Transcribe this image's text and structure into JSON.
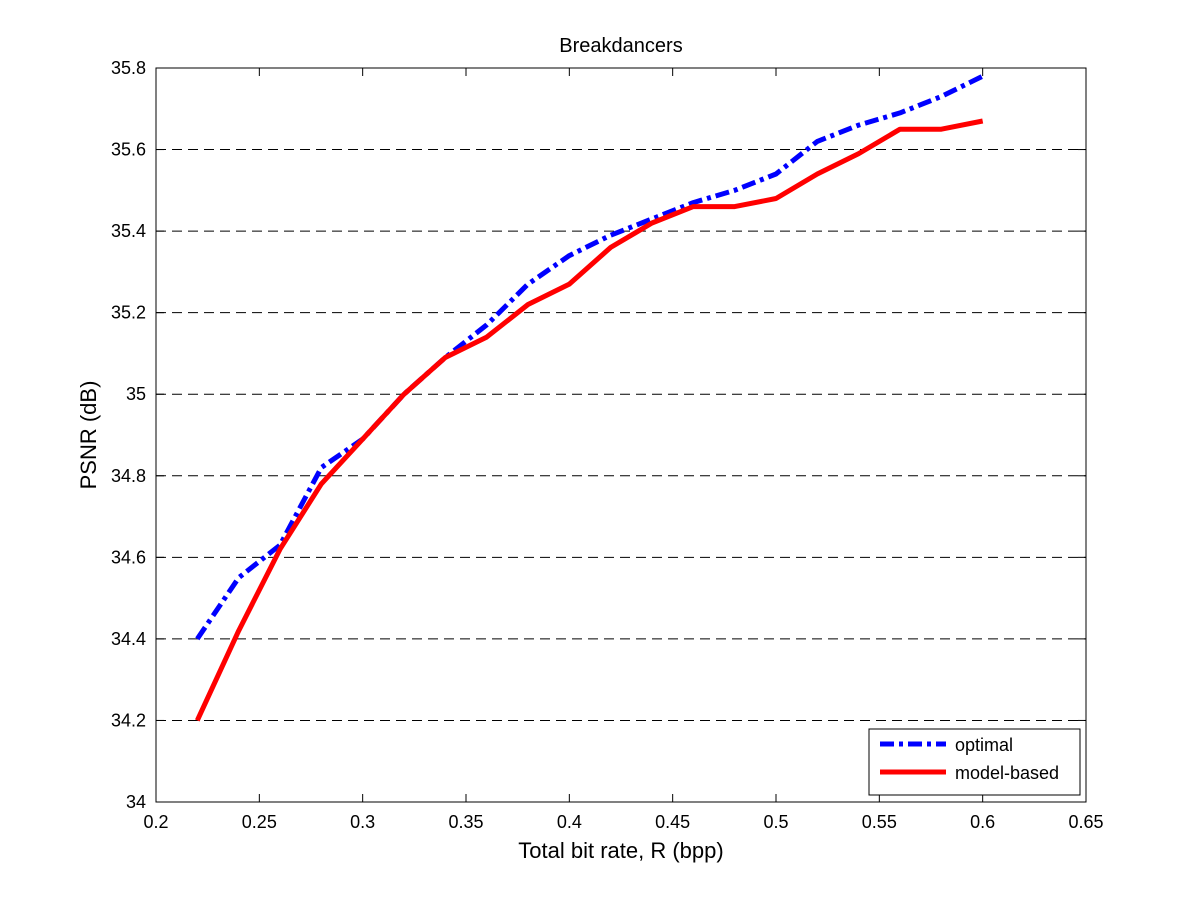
{
  "chart_data": {
    "type": "line",
    "title": "Breakdancers",
    "xlabel": "Total bit rate, R (bpp)",
    "ylabel": "PSNR (dB)",
    "xlim": [
      0.2,
      0.65
    ],
    "ylim": [
      34,
      35.8
    ],
    "xticks": [
      0.2,
      0.25,
      0.3,
      0.35,
      0.4,
      0.45,
      0.5,
      0.55,
      0.6,
      0.65
    ],
    "xtick_labels": [
      "0.2",
      "0.25",
      "0.3",
      "0.35",
      "0.4",
      "0.45",
      "0.5",
      "0.55",
      "0.6",
      "0.65"
    ],
    "yticks": [
      34,
      34.2,
      34.4,
      34.6,
      34.8,
      35,
      35.2,
      35.4,
      35.6,
      35.8
    ],
    "ytick_labels": [
      "34",
      "34.2",
      "34.4",
      "34.6",
      "34.8",
      "35",
      "35.2",
      "35.4",
      "35.6",
      "35.8"
    ],
    "grid": "horizontal dashed",
    "legend_position": "bottom-right",
    "series": [
      {
        "name": "optimal",
        "color": "#0000ff",
        "style": "dash-dot",
        "x": [
          0.22,
          0.24,
          0.26,
          0.28,
          0.3,
          0.32,
          0.34,
          0.36,
          0.38,
          0.4,
          0.42,
          0.44,
          0.46,
          0.48,
          0.5,
          0.52,
          0.54,
          0.56,
          0.58,
          0.6
        ],
        "y": [
          34.4,
          34.55,
          34.63,
          34.82,
          34.89,
          35.0,
          35.09,
          35.17,
          35.27,
          35.34,
          35.39,
          35.43,
          35.47,
          35.5,
          35.54,
          35.62,
          35.66,
          35.69,
          35.73,
          35.78
        ]
      },
      {
        "name": "model-based",
        "color": "#ff0000",
        "style": "solid",
        "x": [
          0.22,
          0.24,
          0.26,
          0.28,
          0.3,
          0.32,
          0.34,
          0.36,
          0.38,
          0.4,
          0.42,
          0.44,
          0.46,
          0.48,
          0.5,
          0.52,
          0.54,
          0.56,
          0.58,
          0.6
        ],
        "y": [
          34.2,
          34.42,
          34.62,
          34.78,
          34.89,
          35.0,
          35.09,
          35.14,
          35.22,
          35.27,
          35.36,
          35.42,
          35.46,
          35.46,
          35.48,
          35.54,
          35.59,
          35.65,
          35.65,
          35.67
        ]
      }
    ]
  }
}
